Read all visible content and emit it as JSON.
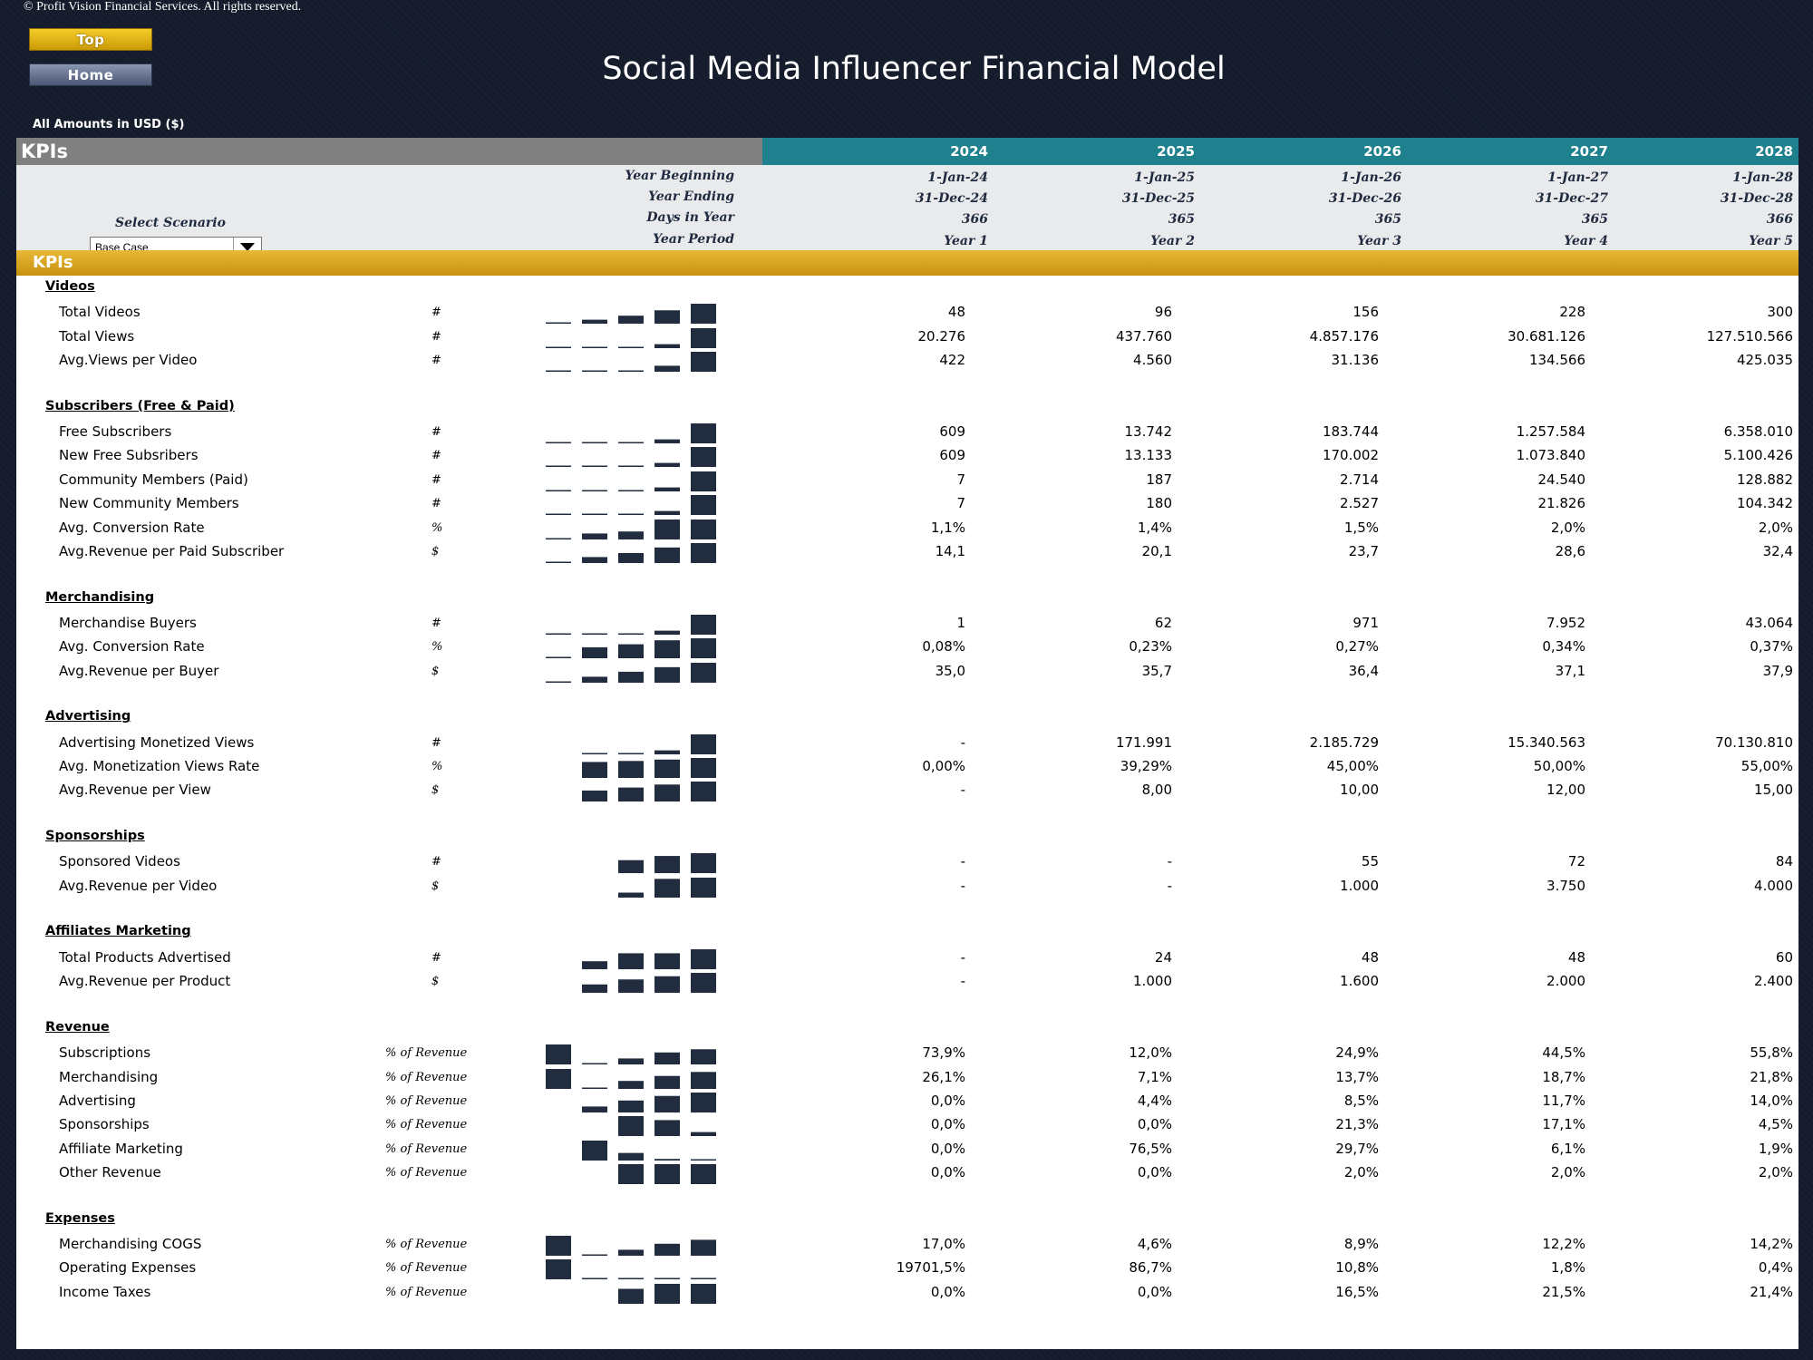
{
  "copyright": "© Profit Vision Financial Services. All rights reserved.",
  "nav": {
    "top_label": "Top",
    "home_label": "Home"
  },
  "title": "Social Media Influencer Financial Model",
  "currency_note": "All Amounts in  USD ($)",
  "header": {
    "sheet_label": "KPIs",
    "years": [
      "2024",
      "2025",
      "2026",
      "2027",
      "2028"
    ],
    "info_rows": [
      {
        "label": "Year Beginning",
        "values": [
          "1-Jan-24",
          "1-Jan-25",
          "1-Jan-26",
          "1-Jan-27",
          "1-Jan-28"
        ]
      },
      {
        "label": "Year Ending",
        "values": [
          "31-Dec-24",
          "31-Dec-25",
          "31-Dec-26",
          "31-Dec-27",
          "31-Dec-28"
        ]
      },
      {
        "label": "Days in Year",
        "values": [
          "366",
          "365",
          "365",
          "365",
          "366"
        ]
      },
      {
        "label": "Year Period",
        "values": [
          "Year 1",
          "Year 2",
          "Year 3",
          "Year 4",
          "Year 5"
        ]
      }
    ]
  },
  "scenario": {
    "label": "Select Scenario",
    "value": "Base Case"
  },
  "kpi_bar_label": "KPIs",
  "colors": {
    "header_teal": "#20818e",
    "header_gray": "#808080",
    "kpi_gold": "#d9a521",
    "sparkbar_navy": "#222c3f",
    "background_navy": "#141b2b"
  },
  "sections": [
    {
      "title": "Videos",
      "rows": [
        {
          "label": "Total Videos",
          "unit": "#",
          "values": [
            "48",
            "96",
            "156",
            "228",
            "300"
          ],
          "spark": [
            0.03,
            0.2,
            0.4,
            0.67,
            1
          ]
        },
        {
          "label": "Total Views",
          "unit": "#",
          "values": [
            "20.276",
            "437.760",
            "4.857.176",
            "30.681.126",
            "127.510.566"
          ],
          "spark": [
            0.02,
            0.02,
            0.03,
            0.2,
            1
          ]
        },
        {
          "label": "Avg.Views per Video",
          "unit": "#",
          "values": [
            "422",
            "4.560",
            "31.136",
            "134.566",
            "425.035"
          ],
          "spark": [
            0.02,
            0.02,
            0.06,
            0.3,
            1
          ]
        }
      ]
    },
    {
      "title": "Subscribers (Free & Paid)",
      "rows": [
        {
          "label": "Free Subscribers",
          "unit": "#",
          "values": [
            "609",
            "13.742",
            "183.744",
            "1.257.584",
            "6.358.010"
          ],
          "spark": [
            0.02,
            0.02,
            0.03,
            0.2,
            1
          ]
        },
        {
          "label": "New Free Subsribers",
          "unit": "#",
          "values": [
            "609",
            "13.133",
            "170.002",
            "1.073.840",
            "5.100.426"
          ],
          "spark": [
            0.02,
            0.02,
            0.03,
            0.2,
            1
          ]
        },
        {
          "label": "Community Members (Paid)",
          "unit": "#",
          "values": [
            "7",
            "187",
            "2.714",
            "24.540",
            "128.882"
          ],
          "spark": [
            0.02,
            0.02,
            0.03,
            0.2,
            1
          ]
        },
        {
          "label": "New Community Members",
          "unit": "#",
          "values": [
            "7",
            "180",
            "2.527",
            "21.826",
            "104.342"
          ],
          "spark": [
            0.02,
            0.02,
            0.03,
            0.2,
            1
          ]
        },
        {
          "label": "Avg. Conversion Rate",
          "unit": "%",
          "values": [
            "1,1%",
            "1,4%",
            "1,5%",
            "2,0%",
            "2,0%"
          ],
          "spark": [
            0.05,
            0.3,
            0.4,
            1,
            1
          ]
        },
        {
          "label": "Avg.Revenue per Paid Subscriber",
          "unit": "$",
          "values": [
            "14,1",
            "20,1",
            "23,7",
            "28,6",
            "32,4"
          ],
          "spark": [
            0.05,
            0.3,
            0.5,
            0.78,
            1
          ]
        }
      ]
    },
    {
      "title": "Merchandising",
      "rows": [
        {
          "label": "Merchandise Buyers",
          "unit": "#",
          "values": [
            "1",
            "62",
            "971",
            "7.952",
            "43.064"
          ],
          "spark": [
            0.02,
            0.02,
            0.03,
            0.2,
            1
          ]
        },
        {
          "label": "Avg. Conversion Rate",
          "unit": "%",
          "values": [
            "0,08%",
            "0,23%",
            "0,27%",
            "0,34%",
            "0,37%"
          ],
          "spark": [
            0.05,
            0.55,
            0.7,
            0.9,
            1
          ]
        },
        {
          "label": "Avg.Revenue per Buyer",
          "unit": "$",
          "values": [
            "35,0",
            "35,7",
            "36,4",
            "37,1",
            "37,9"
          ],
          "spark": [
            0.05,
            0.3,
            0.55,
            0.78,
            1
          ]
        }
      ]
    },
    {
      "title": "Advertising",
      "rows": [
        {
          "label": "Advertising Monetized Views",
          "unit": "#",
          "values": [
            "-",
            "171.991",
            "2.185.729",
            "15.340.563",
            "70.130.810"
          ],
          "spark": [
            null,
            0.02,
            0.03,
            0.2,
            1
          ]
        },
        {
          "label": "Avg. Monetization Views Rate",
          "unit": "%",
          "values": [
            "0,00%",
            "39,29%",
            "45,00%",
            "50,00%",
            "55,00%"
          ],
          "spark": [
            null,
            0.8,
            0.85,
            0.92,
            1
          ]
        },
        {
          "label": "Avg.Revenue per View",
          "unit": "$",
          "values": [
            "-",
            "8,00",
            "10,00",
            "12,00",
            "15,00"
          ],
          "spark": [
            null,
            0.55,
            0.7,
            0.85,
            1
          ]
        }
      ]
    },
    {
      "title": "Sponsorships",
      "rows": [
        {
          "label": "Sponsored Videos",
          "unit": "#",
          "values": [
            "-",
            "-",
            "55",
            "72",
            "84"
          ],
          "spark": [
            null,
            null,
            0.65,
            0.86,
            1
          ]
        },
        {
          "label": "Avg.Revenue per Video",
          "unit": "$",
          "values": [
            "-",
            "-",
            "1.000",
            "3.750",
            "4.000"
          ],
          "spark": [
            null,
            null,
            0.25,
            0.94,
            1
          ]
        }
      ]
    },
    {
      "title": "Affiliates Marketing",
      "rows": [
        {
          "label": "Total Products Advertised",
          "unit": "#",
          "values": [
            "-",
            "24",
            "48",
            "48",
            "60"
          ],
          "spark": [
            null,
            0.4,
            0.8,
            0.8,
            1
          ]
        },
        {
          "label": "Avg.Revenue per Product",
          "unit": "$",
          "values": [
            "-",
            "1.000",
            "1.600",
            "2.000",
            "2.400"
          ],
          "spark": [
            null,
            0.42,
            0.67,
            0.83,
            1
          ]
        }
      ]
    },
    {
      "title": "Revenue",
      "rows": [
        {
          "label": "Subscriptions",
          "unit": "% of Revenue",
          "values": [
            "73,9%",
            "12,0%",
            "24,9%",
            "44,5%",
            "55,8%"
          ],
          "spark": [
            1,
            0.02,
            0.3,
            0.6,
            0.76
          ]
        },
        {
          "label": "Merchandising",
          "unit": "% of Revenue",
          "values": [
            "26,1%",
            "7,1%",
            "13,7%",
            "18,7%",
            "21,8%"
          ],
          "spark": [
            1,
            0.05,
            0.4,
            0.65,
            0.85
          ]
        },
        {
          "label": "Advertising",
          "unit": "% of Revenue",
          "values": [
            "0,0%",
            "4,4%",
            "8,5%",
            "11,7%",
            "14,0%"
          ],
          "spark": [
            null,
            0.3,
            0.6,
            0.83,
            1
          ]
        },
        {
          "label": "Sponsorships",
          "unit": "% of Revenue",
          "values": [
            "0,0%",
            "0,0%",
            "21,3%",
            "17,1%",
            "4,5%"
          ],
          "spark": [
            null,
            null,
            1,
            0.8,
            0.2
          ]
        },
        {
          "label": "Affiliate Marketing",
          "unit": "% of Revenue",
          "values": [
            "0,0%",
            "76,5%",
            "29,7%",
            "6,1%",
            "1,9%"
          ],
          "spark": [
            null,
            1,
            0.38,
            0.08,
            0.03
          ]
        },
        {
          "label": "Other Revenue",
          "unit": "% of Revenue",
          "values": [
            "0,0%",
            "0,0%",
            "2,0%",
            "2,0%",
            "2,0%"
          ],
          "spark": [
            null,
            null,
            1,
            1,
            1
          ]
        }
      ]
    },
    {
      "title": "Expenses",
      "rows": [
        {
          "label": "Merchandising COGS",
          "unit": "% of Revenue",
          "values": [
            "17,0%",
            "4,6%",
            "8,9%",
            "12,2%",
            "14,2%"
          ],
          "spark": [
            1,
            0.03,
            0.3,
            0.6,
            0.8
          ]
        },
        {
          "label": "Operating Expenses",
          "unit": "% of Revenue",
          "values": [
            "19701,5%",
            "86,7%",
            "10,8%",
            "1,8%",
            "0,4%"
          ],
          "spark": [
            1,
            0.02,
            0.02,
            0.02,
            0.02
          ]
        },
        {
          "label": "Income Taxes",
          "unit": "% of Revenue",
          "values": [
            "0,0%",
            "0,0%",
            "16,5%",
            "21,5%",
            "21,4%"
          ],
          "spark": [
            null,
            null,
            0.75,
            1,
            1
          ]
        }
      ]
    }
  ]
}
